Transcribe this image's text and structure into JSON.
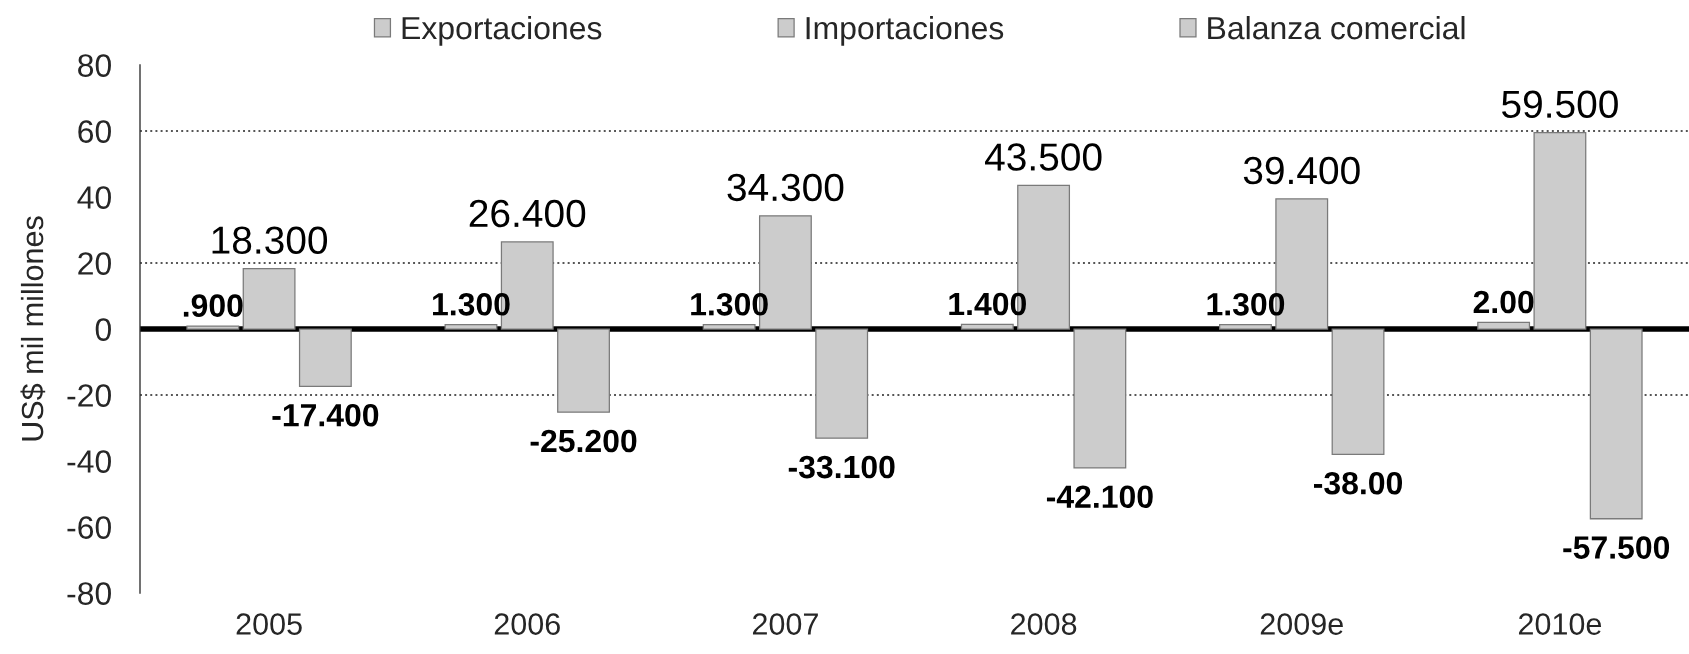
{
  "chart_data": {
    "type": "bar",
    "ylabel": "US$ mil millones",
    "categories": [
      "2005",
      "2006",
      "2007",
      "2008",
      "2009e",
      "2010e"
    ],
    "series": [
      {
        "name": "Exportaciones",
        "color": "#cccccc",
        "values": [
          18.3,
          26.4,
          34.3,
          43.5,
          39.4,
          59.5
        ],
        "value_labels": [
          "18.300",
          "26.400",
          "34.300",
          "43.500",
          "39.400",
          "59.500"
        ]
      },
      {
        "name": "Importaciones",
        "color": "#cccccc",
        "values": [
          -17.4,
          -25.2,
          -33.1,
          -42.1,
          -38.0,
          -57.5
        ],
        "value_labels": [
          "-17.400",
          "-25.200",
          "-33.100",
          "-42.100",
          "-38.00",
          "-57.500"
        ]
      },
      {
        "name": "Balanza comercial",
        "color": "#cccccc",
        "values": [
          0.9,
          1.3,
          1.3,
          1.4,
          1.3,
          2.0
        ],
        "value_labels": [
          ".900",
          "1.300",
          "1.300",
          "1.400",
          "1.300",
          "2.00"
        ]
      }
    ],
    "ylim": [
      -80,
      80
    ],
    "yticks": [
      -80,
      -60,
      -40,
      -20,
      0,
      20,
      40,
      60,
      80
    ],
    "ref_lines": [
      {
        "axis": "y",
        "value": 0,
        "color": "#000000",
        "line_style": "solid"
      },
      {
        "axis": "y",
        "value": -20,
        "color": "#555555",
        "line_style": "dotted"
      },
      {
        "axis": "y",
        "value": 20,
        "color": "#555555",
        "line_style": "dotted"
      },
      {
        "axis": "y",
        "value": 60,
        "color": "#555555",
        "line_style": "dotted"
      }
    ],
    "legend": "top"
  }
}
